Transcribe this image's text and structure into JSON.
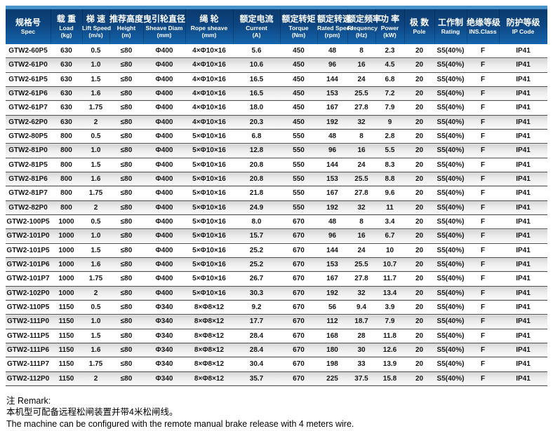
{
  "colors": {
    "header_strip": "#4a93ca",
    "header_top": "#0b3a6d",
    "header_bottom": "#1566ae",
    "row_alt_top": "#d3d3d3",
    "row_border": "#4f4f4f"
  },
  "table": {
    "columns": [
      {
        "zh": "规格号",
        "en": "Spec",
        "unit": ""
      },
      {
        "zh": "载 重",
        "en": "Load",
        "unit": "(kg)"
      },
      {
        "zh": "梯 速",
        "en": "Lift Speed",
        "unit": "(m/s)"
      },
      {
        "zh": "推荐高度",
        "en": "Height",
        "unit": "(m)"
      },
      {
        "zh": "曳引轮直径",
        "en": "Sheave Diam",
        "unit": "(mm)"
      },
      {
        "zh": "绳 轮",
        "en": "Rope sheave",
        "unit": "(mm)"
      },
      {
        "zh": "额定电流",
        "en": "Current",
        "unit": "(A)"
      },
      {
        "zh": "额定转矩",
        "en": "Torque",
        "unit": "(Nm)"
      },
      {
        "zh": "额定转速",
        "en": "Rated Speed",
        "unit": "(rpm)"
      },
      {
        "zh": "额定频率",
        "en": "Frequency",
        "unit": "(Hz)"
      },
      {
        "zh": "功 率",
        "en": "Power",
        "unit": "(kW)"
      },
      {
        "zh": "极 数",
        "en": "Pole",
        "unit": ""
      },
      {
        "zh": "工作制",
        "en": "Rating",
        "unit": ""
      },
      {
        "zh": "绝缘等级",
        "en": "INS.Class",
        "unit": ""
      },
      {
        "zh": "防护等级",
        "en": "IP Code",
        "unit": ""
      }
    ],
    "rows": [
      [
        "GTW2-60P5",
        "630",
        "0.5",
        "≤80",
        "Φ400",
        "4×Φ10×16",
        "5.6",
        "450",
        "48",
        "8",
        "2.3",
        "20",
        "S5(40%)",
        "F",
        "IP41"
      ],
      [
        "GTW2-61P0",
        "630",
        "1.0",
        "≤80",
        "Φ400",
        "4×Φ10×16",
        "10.6",
        "450",
        "96",
        "16",
        "4.5",
        "20",
        "S5(40%)",
        "F",
        "IP41"
      ],
      [
        "GTW2-61P5",
        "630",
        "1.5",
        "≤80",
        "Φ400",
        "4×Φ10×16",
        "16.5",
        "450",
        "144",
        "24",
        "6.8",
        "20",
        "S5(40%)",
        "F",
        "IP41"
      ],
      [
        "GTW2-61P6",
        "630",
        "1.6",
        "≤80",
        "Φ400",
        "4×Φ10×16",
        "16.5",
        "450",
        "153",
        "25.5",
        "7.2",
        "20",
        "S5(40%)",
        "F",
        "IP41"
      ],
      [
        "GTW2-61P7",
        "630",
        "1.75",
        "≤80",
        "Φ400",
        "4×Φ10×16",
        "18.0",
        "450",
        "167",
        "27.8",
        "7.9",
        "20",
        "S5(40%)",
        "F",
        "IP41"
      ],
      [
        "GTW2-62P0",
        "630",
        "2",
        "≤80",
        "Φ400",
        "4×Φ10×16",
        "20.3",
        "450",
        "192",
        "32",
        "9",
        "20",
        "S5(40%)",
        "F",
        "IP41"
      ],
      [
        "GTW2-80P5",
        "800",
        "0.5",
        "≤80",
        "Φ400",
        "5×Φ10×16",
        "6.8",
        "550",
        "48",
        "8",
        "2.8",
        "20",
        "S5(40%)",
        "F",
        "IP41"
      ],
      [
        "GTW2-81P0",
        "800",
        "1.0",
        "≤80",
        "Φ400",
        "5×Φ10×16",
        "12.8",
        "550",
        "96",
        "16",
        "5.5",
        "20",
        "S5(40%)",
        "F",
        "IP41"
      ],
      [
        "GTW2-81P5",
        "800",
        "1.5",
        "≤80",
        "Φ400",
        "5×Φ10×16",
        "20.8",
        "550",
        "144",
        "24",
        "8.3",
        "20",
        "S5(40%)",
        "F",
        "IP41"
      ],
      [
        "GTW2-81P6",
        "800",
        "1.6",
        "≤80",
        "Φ400",
        "5×Φ10×16",
        "20.8",
        "550",
        "153",
        "25.5",
        "8.8",
        "20",
        "S5(40%)",
        "F",
        "IP41"
      ],
      [
        "GTW2-81P7",
        "800",
        "1.75",
        "≤80",
        "Φ400",
        "5×Φ10×16",
        "21.8",
        "550",
        "167",
        "27.8",
        "9.6",
        "20",
        "S5(40%)",
        "F",
        "IP41"
      ],
      [
        "GTW2-82P0",
        "800",
        "2",
        "≤80",
        "Φ400",
        "5×Φ10×16",
        "24.9",
        "550",
        "192",
        "32",
        "11",
        "20",
        "S5(40%)",
        "F",
        "IP41"
      ],
      [
        "GTW2-100P5",
        "1000",
        "0.5",
        "≤80",
        "Φ400",
        "5×Φ10×16",
        "8.0",
        "670",
        "48",
        "8",
        "3.4",
        "20",
        "S5(40%)",
        "F",
        "IP41"
      ],
      [
        "GTW2-101P0",
        "1000",
        "1.0",
        "≤80",
        "Φ400",
        "5×Φ10×16",
        "15.7",
        "670",
        "96",
        "16",
        "6.7",
        "20",
        "S5(40%)",
        "F",
        "IP41"
      ],
      [
        "GTW2-101P5",
        "1000",
        "1.5",
        "≤80",
        "Φ400",
        "5×Φ10×16",
        "25.2",
        "670",
        "144",
        "24",
        "10",
        "20",
        "S5(40%)",
        "F",
        "IP41"
      ],
      [
        "GTW2-101P6",
        "1000",
        "1.6",
        "≤80",
        "Φ400",
        "5×Φ10×16",
        "25.2",
        "670",
        "153",
        "25.5",
        "10.7",
        "20",
        "S5(40%)",
        "F",
        "IP41"
      ],
      [
        "GTW2-101P7",
        "1000",
        "1.75",
        "≤80",
        "Φ400",
        "5×Φ10×16",
        "26.7",
        "670",
        "167",
        "27.8",
        "11.7",
        "20",
        "S5(40%)",
        "F",
        "IP41"
      ],
      [
        "GTW2-102P0",
        "1000",
        "2",
        "≤80",
        "Φ400",
        "5×Φ10×16",
        "30.3",
        "670",
        "192",
        "32",
        "13.4",
        "20",
        "S5(40%)",
        "F",
        "IP41"
      ],
      [
        "GTW2-110P5",
        "1150",
        "0.5",
        "≤80",
        "Φ340",
        "8×Φ8×12",
        "9.2",
        "670",
        "56",
        "9.4",
        "3.9",
        "20",
        "S5(40%)",
        "F",
        "IP41"
      ],
      [
        "GTW2-111P0",
        "1150",
        "1.0",
        "≤80",
        "Φ340",
        "8×Φ8×12",
        "17.7",
        "670",
        "112",
        "18.7",
        "7.9",
        "20",
        "S5(40%)",
        "F",
        "IP41"
      ],
      [
        "GTW2-111P5",
        "1150",
        "1.5",
        "≤80",
        "Φ340",
        "8×Φ8×12",
        "28.4",
        "670",
        "168",
        "28",
        "11.8",
        "20",
        "S5(40%)",
        "F",
        "IP41"
      ],
      [
        "GTW2-111P6",
        "1150",
        "1.6",
        "≤80",
        "Φ340",
        "8×Φ8×12",
        "28.4",
        "670",
        "180",
        "30",
        "12.6",
        "20",
        "S5(40%)",
        "F",
        "IP41"
      ],
      [
        "GTW2-111P7",
        "1150",
        "1.75",
        "≤80",
        "Φ340",
        "8×Φ8×12",
        "30.4",
        "670",
        "198",
        "33",
        "13.9",
        "20",
        "S5(40%)",
        "F",
        "IP41"
      ],
      [
        "GTW2-112P0",
        "1150",
        "2",
        "≤80",
        "Φ340",
        "8×Φ8×12",
        "35.7",
        "670",
        "225",
        "37.5",
        "15.8",
        "20",
        "S5(40%)",
        "F",
        "IP41"
      ]
    ]
  },
  "remark": {
    "title": "注  Remark:",
    "line_zh": "本机型可配备远程松闸装置并带4米松闸线。",
    "line_en": "The machine can be configured with the remote manual brake release with 4 meters wire."
  }
}
